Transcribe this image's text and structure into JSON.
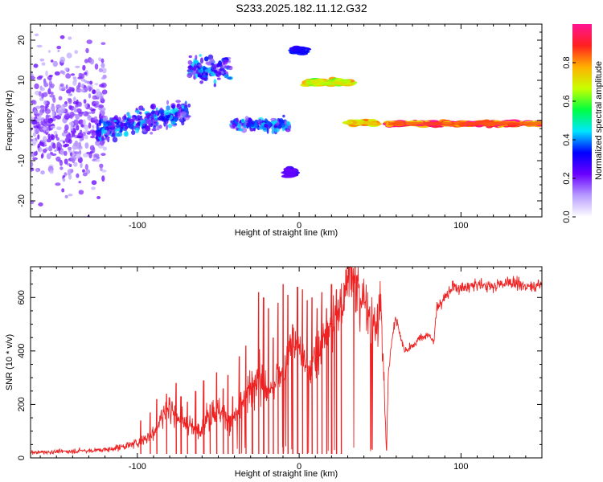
{
  "title": "S233.2025.182.11.12.G32",
  "chart_data": [
    {
      "type": "heatmap",
      "title": "",
      "xlabel": "Height of straight line (km)",
      "ylabel": "Frequency (Hz)",
      "xlim": [
        -166,
        150
      ],
      "ylim": [
        -24,
        24
      ],
      "xticks": [
        -100,
        0,
        100
      ],
      "yticks": [
        -20,
        -10,
        0,
        10,
        20
      ],
      "colorbar": {
        "label": "Normalized spectral amplitude",
        "range": [
          0,
          1
        ],
        "ticks": [
          "0.0",
          "0.2",
          "0.4",
          "0.6",
          "0.8"
        ],
        "colormap": [
          "#ffffff",
          "#b79cff",
          "#6a00ff",
          "#0000ff",
          "#00e5ff",
          "#00ff40",
          "#c8ff00",
          "#ffb000",
          "#ff2020",
          "#ff1493"
        ]
      },
      "features": [
        {
          "x_start": -166,
          "x_end": -120,
          "freq_center": 0,
          "freq_spread": 24,
          "amplitude": 0.18
        },
        {
          "x_start": -125,
          "x_end": -68,
          "freq_center": 0,
          "freq_spread": 4,
          "amplitude": 0.35
        },
        {
          "x_start": -68,
          "x_end": -42,
          "freq_center": 13,
          "freq_spread": 4,
          "amplitude": 0.35
        },
        {
          "x_start": -42,
          "x_end": -6,
          "freq_center": -1,
          "freq_spread": 2,
          "amplitude": 0.35
        },
        {
          "x_start": -8,
          "x_end": -2,
          "freq_center": -13,
          "freq_spread": 1.5,
          "amplitude": 0.25
        },
        {
          "x_start": -4,
          "x_end": 4,
          "freq_center": 17.5,
          "freq_spread": 1.2,
          "amplitude": 0.35
        },
        {
          "x_start": 4,
          "x_end": 32,
          "freq_center": 9.5,
          "freq_spread": 1,
          "amplitude": 0.75
        },
        {
          "x_start": 30,
          "x_end": 48,
          "freq_center": -0.5,
          "freq_spread": 0.8,
          "amplitude": 0.8
        },
        {
          "x_start": 55,
          "x_end": 150,
          "freq_center": -0.8,
          "freq_spread": 0.7,
          "amplitude": 0.95
        }
      ]
    },
    {
      "type": "line",
      "title": "",
      "xlabel": "Height of straight line (km)",
      "ylabel": "SNR (10 * v/v)",
      "xlim": [
        -166,
        150
      ],
      "ylim": [
        0,
        715
      ],
      "xticks": [
        -100,
        0,
        100
      ],
      "yticks": [
        0,
        200,
        400,
        600
      ],
      "series": [
        {
          "color": "#ee2222",
          "x": [
            -166,
            -140,
            -120,
            -110,
            -100,
            -90,
            -85,
            -80,
            -75,
            -70,
            -65,
            -60,
            -55,
            -50,
            -45,
            -40,
            -35,
            -30,
            -25,
            -20,
            -15,
            -10,
            -5,
            0,
            5,
            10,
            15,
            20,
            25,
            28,
            30,
            35,
            40,
            45,
            48,
            50,
            52,
            54,
            55,
            58,
            60,
            65,
            70,
            75,
            80,
            83,
            85,
            90,
            95,
            100,
            110,
            120,
            130,
            140,
            150
          ],
          "y": [
            20,
            25,
            30,
            40,
            55,
            90,
            150,
            190,
            160,
            130,
            110,
            120,
            160,
            180,
            150,
            140,
            210,
            260,
            330,
            240,
            300,
            320,
            420,
            390,
            330,
            370,
            450,
            500,
            560,
            620,
            690,
            640,
            590,
            540,
            470,
            620,
            350,
            10,
            310,
            480,
            520,
            400,
            420,
            450,
            460,
            430,
            560,
            600,
            640,
            630,
            650,
            640,
            660,
            640,
            650
          ],
          "x_peaks": [
            -98,
            -92,
            -88,
            -82,
            -76,
            -73,
            -69,
            -64,
            -59,
            -55,
            -51,
            -47,
            -44,
            -41,
            -37,
            -33,
            -29,
            -25,
            -22,
            -19,
            -16,
            -13,
            -10,
            -7,
            -4,
            -1,
            2,
            5,
            8,
            11,
            14,
            17,
            20,
            23,
            26
          ],
          "y_peaks": [
            140,
            170,
            220,
            240,
            280,
            230,
            210,
            250,
            290,
            200,
            320,
            260,
            310,
            230,
            380,
            420,
            300,
            620,
            600,
            560,
            450,
            580,
            650,
            610,
            500,
            640,
            630,
            590,
            600,
            560,
            620,
            560,
            650,
            630,
            600
          ]
        }
      ]
    }
  ]
}
